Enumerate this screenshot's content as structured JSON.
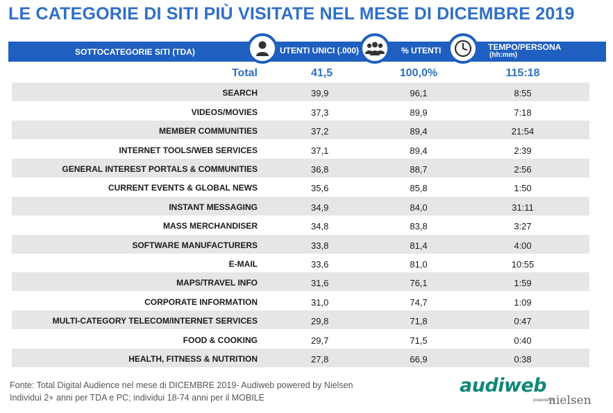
{
  "title": "LE CATEGORIE DI SITI PIÙ VISITATE NEL MESE DI DICEMBRE 2019",
  "header": {
    "category_label": "SOTTOCATEGORIE SITI  (TDA)",
    "col1_label": "UTENTI UNICI (.000)",
    "col2_label": "% UTENTI",
    "col3_label": "TEMPO/PERSONA",
    "col3_sub": "(hh:mm)",
    "col1_icon": "person-icon",
    "col2_icon": "group-icon",
    "col3_icon": "clock-icon"
  },
  "colors": {
    "accent": "#1f5fbf",
    "title": "#2e6fc7",
    "row_shade": "#e6e6e6",
    "logo": "#11867a"
  },
  "chart_data": {
    "type": "table",
    "title": "LE CATEGORIE DI SITI PIÙ VISITATE NEL MESE DI DICEMBRE 2019",
    "columns": [
      "SOTTOCATEGORIE SITI  (TDA)",
      "UTENTI UNICI (.000)",
      "% UTENTI",
      "TEMPO/PERSONA (hh:mm)"
    ],
    "total": {
      "label": "Total",
      "utenti": "41,5",
      "perc": "100,0%",
      "tempo": "115:18"
    },
    "rows": [
      {
        "label": "SEARCH",
        "utenti": "39,9",
        "perc": "96,1",
        "tempo": "8:55"
      },
      {
        "label": "VIDEOS/MOVIES",
        "utenti": "37,3",
        "perc": "89,9",
        "tempo": "7:18"
      },
      {
        "label": "MEMBER COMMUNITIES",
        "utenti": "37,2",
        "perc": "89,4",
        "tempo": "21:54"
      },
      {
        "label": "INTERNET TOOLS/WEB SERVICES",
        "utenti": "37,1",
        "perc": "89,4",
        "tempo": "2:39"
      },
      {
        "label": "GENERAL INTEREST PORTALS & COMMUNITIES",
        "utenti": "36,8",
        "perc": "88,7",
        "tempo": "2:56"
      },
      {
        "label": "CURRENT EVENTS & GLOBAL NEWS",
        "utenti": "35,6",
        "perc": "85,8",
        "tempo": "1:50"
      },
      {
        "label": "INSTANT MESSAGING",
        "utenti": "34,9",
        "perc": "84,0",
        "tempo": "31:11"
      },
      {
        "label": "MASS MERCHANDISER",
        "utenti": "34,8",
        "perc": "83,8",
        "tempo": "3:27"
      },
      {
        "label": "SOFTWARE MANUFACTURERS",
        "utenti": "33,8",
        "perc": "81,4",
        "tempo": "4:00"
      },
      {
        "label": "E-MAIL",
        "utenti": "33,6",
        "perc": "81,0",
        "tempo": "10:55"
      },
      {
        "label": "MAPS/TRAVEL INFO",
        "utenti": "31,6",
        "perc": "76,1",
        "tempo": "1:59"
      },
      {
        "label": "CORPORATE INFORMATION",
        "utenti": "31,0",
        "perc": "74,7",
        "tempo": "1:09"
      },
      {
        "label": "MULTI-CATEGORY TELECOM/INTERNET SERVICES",
        "utenti": "29,8",
        "perc": "71,8",
        "tempo": "0:47"
      },
      {
        "label": "FOOD & COOKING",
        "utenti": "29,7",
        "perc": "71,5",
        "tempo": "0:40"
      },
      {
        "label": "HEALTH, FITNESS & NUTRITION",
        "utenti": "27,8",
        "perc": "66,9",
        "tempo": "0:38"
      }
    ]
  },
  "footer": {
    "line1": "Fonte: Total Digital Audience nel mese di DICEMBRE 2019- Audiweb powered by Nielsen",
    "line2": "Individui 2+ anni per TDA e PC; individui 18-74 anni per il MOBILE"
  },
  "logo": {
    "main": "audiweb",
    "powered": "powered by",
    "nielsen": "nielsen"
  }
}
